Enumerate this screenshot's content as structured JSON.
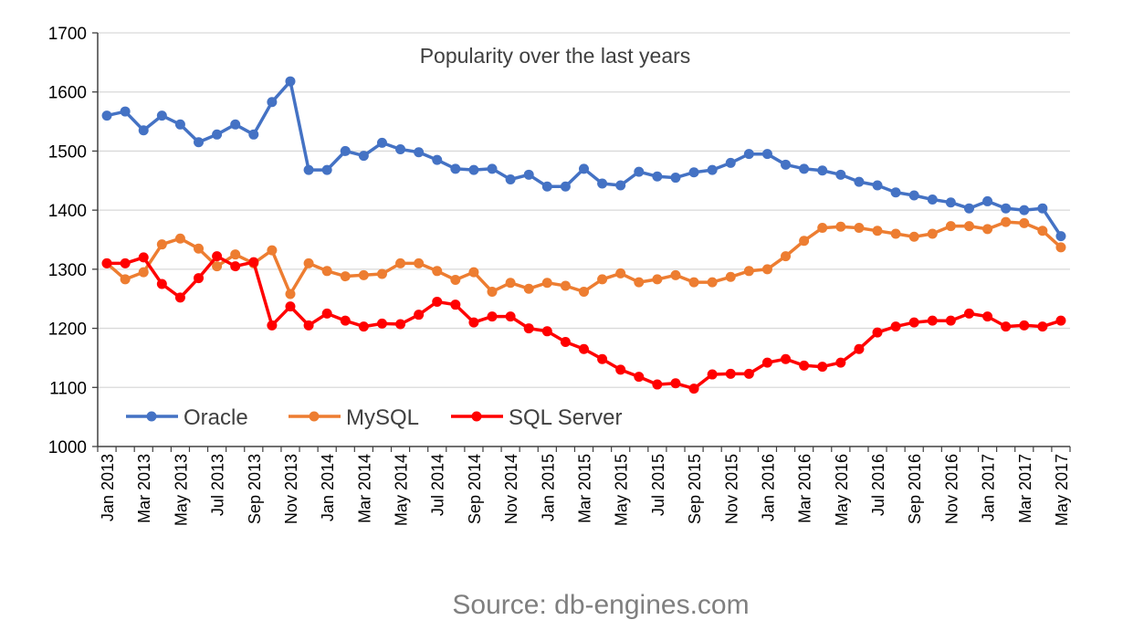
{
  "chart_data": {
    "type": "line",
    "title": "Popularity over the last years",
    "xlabel": "",
    "ylabel": "",
    "ylim": [
      1000,
      1700
    ],
    "yticks": [
      1000,
      1100,
      1200,
      1300,
      1400,
      1500,
      1600,
      1700
    ],
    "grid": "horizontal",
    "legend_position": "bottom-left inside plot",
    "categories": [
      "Jan 2013",
      "Feb 2013",
      "Mar 2013",
      "Apr 2013",
      "May 2013",
      "Jun 2013",
      "Jul 2013",
      "Aug 2013",
      "Sep 2013",
      "Oct 2013",
      "Nov 2013",
      "Dec 2013",
      "Jan 2014",
      "Feb 2014",
      "Mar 2014",
      "Apr 2014",
      "May 2014",
      "Jun 2014",
      "Jul 2014",
      "Aug 2014",
      "Sep 2014",
      "Oct 2014",
      "Nov 2014",
      "Dec 2014",
      "Jan 2015",
      "Feb 2015",
      "Mar 2015",
      "Apr 2015",
      "May 2015",
      "Jun 2015",
      "Jul 2015",
      "Aug 2015",
      "Sep 2015",
      "Oct 2015",
      "Nov 2015",
      "Dec 2015",
      "Jan 2016",
      "Feb 2016",
      "Mar 2016",
      "Apr 2016",
      "May 2016",
      "Jun 2016",
      "Jul 2016",
      "Aug 2016",
      "Sep 2016",
      "Oct 2016",
      "Nov 2016",
      "Dec 2016",
      "Jan 2017",
      "Feb 2017",
      "Mar 2017",
      "Apr 2017",
      "May 2017"
    ],
    "tick_labels": [
      "Jan 2013",
      "Mar 2013",
      "May 2013",
      "Jul 2013",
      "Sep 2013",
      "Nov 2013",
      "Jan 2014",
      "Mar 2014",
      "May 2014",
      "Jul 2014",
      "Sep 2014",
      "Nov 2014",
      "Jan 2015",
      "Mar 2015",
      "May 2015",
      "Jul 2015",
      "Sep 2015",
      "Nov 2015",
      "Jan 2016",
      "Mar 2016",
      "May 2016",
      "Jul 2016",
      "Sep 2016",
      "Nov 2016",
      "Jan 2017",
      "Mar 2017",
      "May 2017"
    ],
    "series": [
      {
        "name": "Oracle",
        "color": "#4472c4",
        "values": [
          1560,
          1567,
          1535,
          1560,
          1545,
          1515,
          1528,
          1545,
          1528,
          1583,
          1618,
          1468,
          1468,
          1500,
          1492,
          1514,
          1503,
          1498,
          1485,
          1470,
          1468,
          1470,
          1452,
          1460,
          1440,
          1440,
          1470,
          1445,
          1442,
          1465,
          1457,
          1455,
          1464,
          1468,
          1480,
          1495,
          1495,
          1477,
          1470,
          1467,
          1460,
          1448,
          1442,
          1430,
          1425,
          1418,
          1413,
          1403,
          1415,
          1403,
          1400,
          1403,
          1356
        ]
      },
      {
        "name": "MySQL",
        "color": "#ed7d31",
        "values": [
          1310,
          1283,
          1295,
          1342,
          1352,
          1335,
          1305,
          1325,
          1310,
          1332,
          1258,
          1310,
          1297,
          1288,
          1290,
          1292,
          1310,
          1310,
          1297,
          1282,
          1295,
          1262,
          1277,
          1267,
          1277,
          1272,
          1262,
          1283,
          1293,
          1278,
          1283,
          1290,
          1278,
          1278,
          1287,
          1297,
          1300,
          1322,
          1348,
          1370,
          1372,
          1370,
          1365,
          1360,
          1355,
          1360,
          1373,
          1373,
          1368,
          1380,
          1378,
          1365,
          1337
        ]
      },
      {
        "name": "SQL Server",
        "color": "#ff0000",
        "values": [
          1310,
          1310,
          1320,
          1275,
          1252,
          1285,
          1322,
          1305,
          1312,
          1205,
          1237,
          1205,
          1225,
          1213,
          1203,
          1208,
          1207,
          1223,
          1245,
          1240,
          1210,
          1220,
          1220,
          1200,
          1195,
          1177,
          1165,
          1148,
          1130,
          1118,
          1105,
          1107,
          1098,
          1122,
          1123,
          1123,
          1142,
          1148,
          1137,
          1135,
          1142,
          1165,
          1193,
          1203,
          1210,
          1213,
          1213,
          1225,
          1220,
          1203,
          1205,
          1203,
          1213
        ]
      }
    ]
  },
  "source": "Source: db-engines.com"
}
